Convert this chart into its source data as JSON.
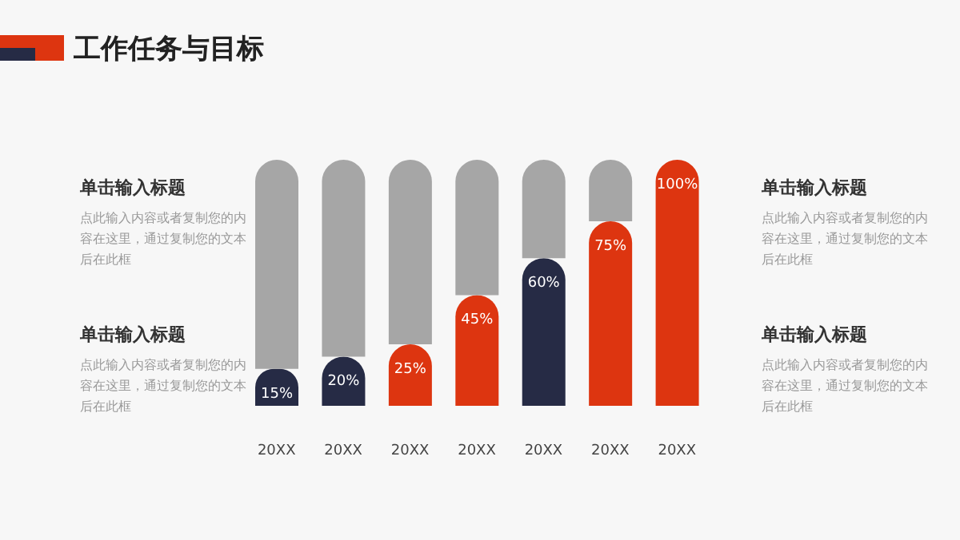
{
  "chart_data": {
    "type": "bar",
    "title": "工作任务与目标",
    "categories": [
      "20XX",
      "20XX",
      "20XX",
      "20XX",
      "20XX",
      "20XX",
      "20XX"
    ],
    "stacked": true,
    "ylim": [
      0,
      100
    ],
    "tick_labels": "x",
    "series": [
      {
        "colors": [
          "#262b45",
          "#262b45",
          "#dd3510",
          "#dd3510",
          "#262b45",
          "#dd3510",
          "#dd3510"
        ],
        "values": [
          15,
          20,
          25,
          45,
          60,
          75,
          100
        ],
        "value_labels": [
          "15%",
          "20%",
          "25%",
          "45%",
          "60%",
          "75%",
          "100%"
        ]
      },
      {
        "color": "#a6a6a6",
        "values": [
          85,
          80,
          75,
          55,
          40,
          25,
          0
        ]
      }
    ],
    "annotations": [
      "单击输入标题",
      "点此输入内容或者复制您的内容在这里，通过复制您的文本后在此框",
      "单击输入标题",
      "点此输入内容或者复制您的内容在这里，通过复制您的文本后在此框",
      "单击输入标题",
      "点此输入内容或者复制您的内容在这里，通过复制您的文本后在此框",
      "单击输入标题",
      "点此输入内容或者复制您的内容在这里，通过复制您的文本后在此框"
    ]
  }
}
